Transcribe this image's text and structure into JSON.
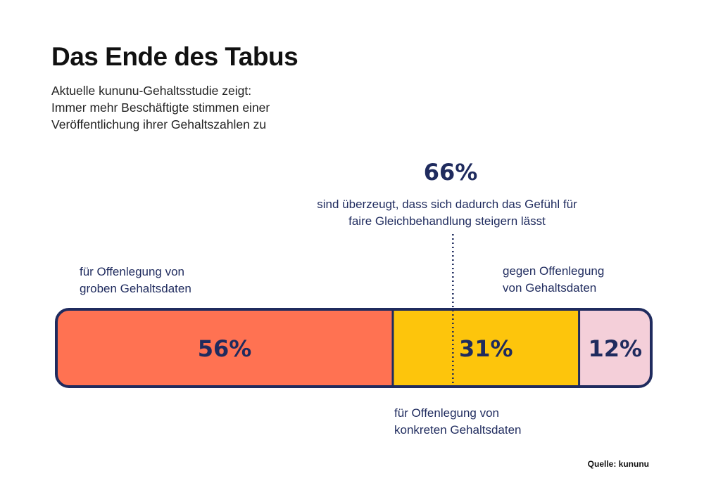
{
  "header": {
    "title": "Das Ende des Tabus",
    "subtitle_lines": [
      "Aktuelle kununu-Gehaltsstudie zeigt:",
      "Immer mehr Beschäftigte stimmen einer",
      "Veröffentlichung ihrer Gehaltszahlen zu"
    ]
  },
  "annotation": {
    "value_label": "66%",
    "description_lines": [
      "sind überzeugt, dass sich dadurch das Gefühl für",
      "faire Gleichbehandlung steigern lässt"
    ]
  },
  "labels": {
    "left_lines": [
      "für Offenlegung von",
      "groben Gehaltsdaten"
    ],
    "right_lines": [
      "gegen Offenlegung",
      "von Gehaltsdaten"
    ],
    "bottom_lines": [
      "für Offenlegung von",
      "konkreten Gehaltsdaten"
    ]
  },
  "footer": {
    "source": "Quelle: kununu"
  },
  "chart_data": {
    "type": "bar",
    "orientation": "horizontal-stacked",
    "categories": [
      "für Offenlegung von groben Gehaltsdaten",
      "für Offenlegung von konkreten Gehaltsdaten",
      "gegen Offenlegung von Gehaltsdaten"
    ],
    "values": [
      56,
      31,
      12
    ],
    "value_labels": [
      "56%",
      "31%",
      "12%"
    ],
    "colors": [
      "#ff7252",
      "#fdc50c",
      "#f4cfd9"
    ],
    "reference_line": {
      "value": 66,
      "label": "66%",
      "style": "dotted"
    },
    "title": "Das Ende des Tabus",
    "xlabel": "",
    "ylabel": "",
    "grid": false,
    "legend": "none"
  },
  "colors": {
    "outline": "#1f2b5e",
    "text_dark": "#1f2b5e",
    "title": "#111111"
  }
}
